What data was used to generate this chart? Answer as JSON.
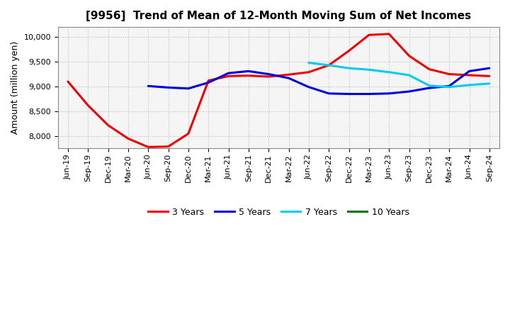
{
  "title": "[9956]  Trend of Mean of 12-Month Moving Sum of Net Incomes",
  "ylabel": "Amount (million yen)",
  "ylim": [
    7750,
    10200
  ],
  "yticks": [
    8000,
    8500,
    9000,
    9500,
    10000
  ],
  "background_color": "#ffffff",
  "plot_bg_color": "#f5f5f5",
  "grid_color": "#bbbbbb",
  "x_labels": [
    "Jun-19",
    "Sep-19",
    "Dec-19",
    "Mar-20",
    "Jun-20",
    "Sep-20",
    "Dec-20",
    "Mar-21",
    "Jun-21",
    "Sep-21",
    "Dec-21",
    "Mar-22",
    "Jun-22",
    "Sep-22",
    "Dec-22",
    "Mar-23",
    "Jun-23",
    "Sep-23",
    "Dec-23",
    "Mar-24",
    "Jun-24",
    "Sep-24"
  ],
  "series": {
    "3 Years": {
      "color": "#ee0000",
      "values": [
        9100,
        8620,
        8220,
        7950,
        7780,
        7790,
        8050,
        9120,
        9210,
        9220,
        9200,
        9240,
        9290,
        9430,
        9720,
        10040,
        10060,
        9620,
        9350,
        9250,
        9230,
        9210
      ]
    },
    "5 Years": {
      "color": "#0000dd",
      "values": [
        null,
        null,
        null,
        null,
        9010,
        8980,
        8960,
        9080,
        9270,
        9310,
        9250,
        9170,
        8990,
        8860,
        8850,
        8850,
        8860,
        8900,
        8970,
        9010,
        9310,
        9370
      ]
    },
    "7 Years": {
      "color": "#00ccee",
      "values": [
        null,
        null,
        null,
        null,
        null,
        null,
        null,
        null,
        null,
        null,
        null,
        null,
        9480,
        9430,
        9370,
        9340,
        9290,
        9230,
        9020,
        8990,
        9030,
        9060
      ]
    },
    "10 Years": {
      "color": "#007700",
      "values": [
        null,
        null,
        null,
        null,
        null,
        null,
        null,
        null,
        null,
        null,
        null,
        null,
        null,
        null,
        null,
        null,
        null,
        null,
        null,
        null,
        null,
        null
      ]
    }
  },
  "legend_labels": [
    "3 Years",
    "5 Years",
    "7 Years",
    "10 Years"
  ],
  "legend_colors": [
    "#ee0000",
    "#0000dd",
    "#00ccee",
    "#007700"
  ],
  "title_fontsize": 11,
  "axis_label_fontsize": 9,
  "tick_fontsize": 8,
  "line_width": 2.2
}
